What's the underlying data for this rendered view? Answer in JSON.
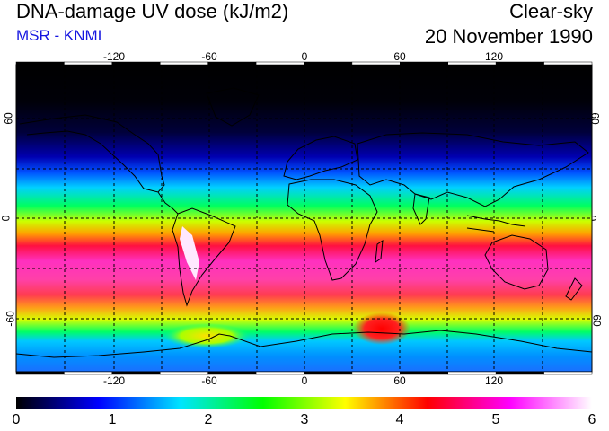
{
  "header": {
    "title": "DNA-damage UV dose (kJ/m2)",
    "source": "MSR - KNMI",
    "condition": "Clear-sky",
    "date": "20 November 1990"
  },
  "map": {
    "lon_ticks": [
      "-120",
      "-60",
      "0",
      "60",
      "120"
    ],
    "lat_ticks_left": [
      "60",
      "0",
      "-60"
    ],
    "lat_ticks_right": [
      "60",
      "0",
      "-60"
    ]
  },
  "colorbar": {
    "labels": [
      "0",
      "1",
      "2",
      "3",
      "4",
      "5",
      "6"
    ],
    "colors": [
      "#000000",
      "#0000ff",
      "#00e5ff",
      "#00ff00",
      "#ffff00",
      "#ff0000",
      "#ff00ff",
      "#ffffff"
    ]
  }
}
